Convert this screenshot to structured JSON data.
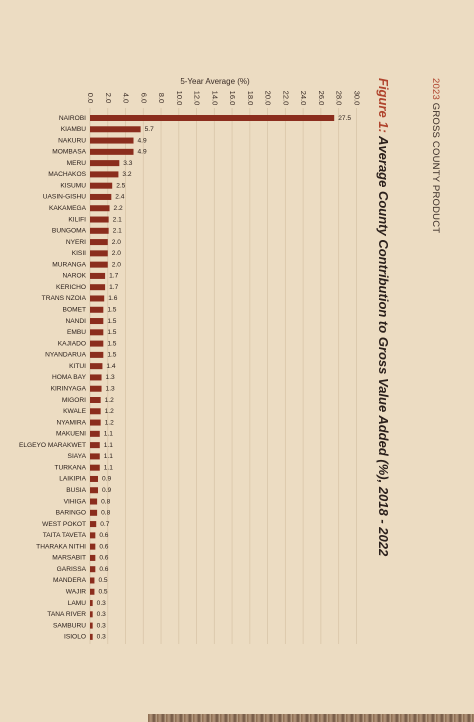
{
  "header": {
    "year": "2023",
    "section": "GROSS COUNTY PRODUCT"
  },
  "figure": {
    "label": "Figure 1:",
    "title": "Average County Contribution to Gross Value Added (%), 2018 - 2022"
  },
  "chart_data": {
    "type": "bar",
    "orientation": "horizontal",
    "xlabel": "5-Year Average (%)",
    "ylabel": "",
    "xlim": [
      0,
      30
    ],
    "ticks": [
      "0.0",
      "2.0",
      "4.0",
      "6.0",
      "8.0",
      "10.0",
      "12.0",
      "14.0",
      "16.0",
      "18.0",
      "20.0",
      "22.0",
      "24.0",
      "26.0",
      "28.0",
      "30.0"
    ],
    "grid": true,
    "bar_color": "#8b2d1d",
    "categories": [
      "NAIROBI",
      "KIAMBU",
      "NAKURU",
      "MOMBASA",
      "MERU",
      "MACHAKOS",
      "KISUMU",
      "UASIN-GISHU",
      "KAKAMEGA",
      "KILIFI",
      "BUNGOMA",
      "NYERI",
      "KISII",
      "MURANGA",
      "NAROK",
      "KERICHO",
      "TRANS NZOIA",
      "BOMET",
      "NANDI",
      "EMBU",
      "KAJIADO",
      "NYANDARUA",
      "KITUI",
      "HOMA BAY",
      "KIRINYAGA",
      "MIGORI",
      "KWALE",
      "NYAMIRA",
      "MAKUENI",
      "ELGEYO MARAKWET",
      "SIAYA",
      "TURKANA",
      "LAIKIPIA",
      "BUSIA",
      "VIHIGA",
      "BARINGO",
      "WEST POKOT",
      "TAITA TAVETA",
      "THARAKA NITHI",
      "MARSABIT",
      "GARISSA",
      "MANDERA",
      "WAJIR",
      "LAMU",
      "TANA RIVER",
      "SAMBURU",
      "ISIOLO"
    ],
    "values": [
      27.5,
      5.7,
      4.9,
      4.9,
      3.3,
      3.2,
      2.5,
      2.4,
      2.2,
      2.1,
      2.1,
      2.0,
      2.0,
      2.0,
      1.7,
      1.7,
      1.6,
      1.5,
      1.5,
      1.5,
      1.5,
      1.5,
      1.4,
      1.3,
      1.3,
      1.2,
      1.2,
      1.2,
      1.1,
      1.1,
      1.1,
      1.1,
      0.9,
      0.9,
      0.8,
      0.8,
      0.7,
      0.6,
      0.6,
      0.6,
      0.6,
      0.5,
      0.5,
      0.3,
      0.3,
      0.3,
      0.3
    ],
    "value_labels": [
      "27.5",
      "5.7",
      "4.9",
      "4.9",
      "3.3",
      "3.2",
      "2.5",
      "2.4",
      "2.2",
      "2.1",
      "2.1",
      "2.0",
      "2.0",
      "2.0",
      "1.7",
      "1.7",
      "1.6",
      "1.5",
      "1.5",
      "1.5",
      "1.5",
      "1.5",
      "1.4",
      "1.3",
      "1.3",
      "1.2",
      "1.2",
      "1.2",
      "1.1",
      "1.1",
      "1.1",
      "1.1",
      "0.9",
      "0.9",
      "0.8",
      "0.8",
      "0.7",
      "0.6",
      "0.6",
      "0.6",
      "0.6",
      "0.5",
      "0.5",
      "0.3",
      "0.3",
      "0.3",
      "0.3"
    ]
  }
}
